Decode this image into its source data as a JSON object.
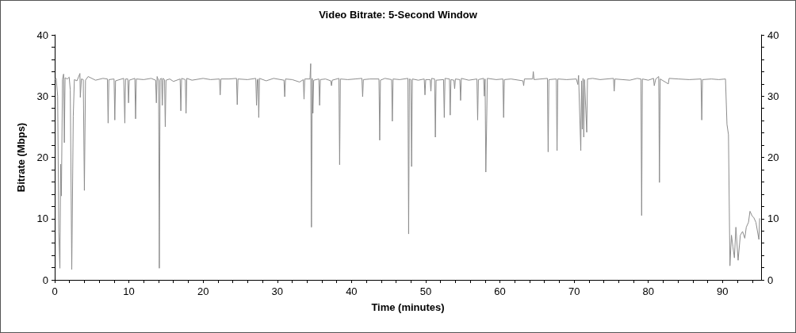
{
  "chart_data": {
    "type": "line",
    "title": "Video Bitrate: 5-Second Window",
    "xlabel": "Time (minutes)",
    "ylabel": "Bitrate (Mbps)",
    "xlim": [
      0,
      95.2
    ],
    "ylim": [
      0,
      40
    ],
    "y2lim": [
      0,
      40
    ],
    "xticks": [
      0,
      {
        "value": 2,
        "label": null
      },
      {
        "value": 4,
        "label": null
      },
      {
        "value": 6,
        "label": null
      },
      {
        "value": 8,
        "label": null
      },
      10,
      {
        "value": 12,
        "label": null
      },
      {
        "value": 14,
        "label": null
      },
      {
        "value": 16,
        "label": null
      },
      {
        "value": 18,
        "label": null
      },
      20,
      {
        "value": 22,
        "label": null
      },
      {
        "value": 24,
        "label": null
      },
      {
        "value": 26,
        "label": null
      },
      {
        "value": 28,
        "label": null
      },
      30,
      {
        "value": 32,
        "label": null
      },
      {
        "value": 34,
        "label": null
      },
      {
        "value": 36,
        "label": null
      },
      {
        "value": 38,
        "label": null
      },
      40,
      {
        "value": 42,
        "label": null
      },
      {
        "value": 44,
        "label": null
      },
      {
        "value": 46,
        "label": null
      },
      {
        "value": 48,
        "label": null
      },
      50,
      {
        "value": 52,
        "label": null
      },
      {
        "value": 54,
        "label": null
      },
      {
        "value": 56,
        "label": null
      },
      {
        "value": 58,
        "label": null
      },
      60,
      {
        "value": 62,
        "label": null
      },
      {
        "value": 64,
        "label": null
      },
      {
        "value": 66,
        "label": null
      },
      {
        "value": 68,
        "label": null
      },
      70,
      {
        "value": 72,
        "label": null
      },
      {
        "value": 74,
        "label": null
      },
      {
        "value": 76,
        "label": null
      },
      {
        "value": 78,
        "label": null
      },
      80,
      {
        "value": 82,
        "label": null
      },
      {
        "value": 84,
        "label": null
      },
      {
        "value": 86,
        "label": null
      },
      {
        "value": 88,
        "label": null
      },
      90,
      {
        "value": 92,
        "label": null
      },
      {
        "value": 94,
        "label": null
      }
    ],
    "yticks": [
      0,
      {
        "value": 2,
        "label": null
      },
      {
        "value": 4,
        "label": null
      },
      {
        "value": 6,
        "label": null
      },
      {
        "value": 8,
        "label": null
      },
      10,
      {
        "value": 12,
        "label": null
      },
      {
        "value": 14,
        "label": null
      },
      {
        "value": 16,
        "label": null
      },
      {
        "value": 18,
        "label": null
      },
      20,
      {
        "value": 22,
        "label": null
      },
      {
        "value": 24,
        "label": null
      },
      {
        "value": 26,
        "label": null
      },
      {
        "value": 28,
        "label": null
      },
      30,
      {
        "value": 32,
        "label": null
      },
      {
        "value": 34,
        "label": null
      },
      {
        "value": 36,
        "label": null
      },
      {
        "value": 38,
        "label": null
      },
      40
    ],
    "y2ticks": [
      0,
      {
        "value": 2,
        "label": null
      },
      {
        "value": 4,
        "label": null
      },
      {
        "value": 6,
        "label": null
      },
      {
        "value": 8,
        "label": null
      },
      10,
      {
        "value": 12,
        "label": null
      },
      {
        "value": 14,
        "label": null
      },
      {
        "value": 16,
        "label": null
      },
      {
        "value": 18,
        "label": null
      },
      20,
      {
        "value": 22,
        "label": null
      },
      {
        "value": 24,
        "label": null
      },
      {
        "value": 26,
        "label": null
      },
      {
        "value": 28,
        "label": null
      },
      30,
      {
        "value": 32,
        "label": null
      },
      {
        "value": 34,
        "label": null
      },
      {
        "value": 36,
        "label": null
      },
      {
        "value": 38,
        "label": null
      },
      40
    ],
    "marker": "none",
    "line_style": "solid",
    "series": [
      {
        "color": "#8c8c8c",
        "x": [
          0,
          0.2,
          0.4,
          0.55,
          0.7,
          0.8,
          0.9,
          1.05,
          1.2,
          1.3,
          1.4,
          1.7,
          1.95,
          2.1,
          2.3,
          2.5,
          2.65,
          3.0,
          3.4,
          3.45,
          3.6,
          3.85,
          4.0,
          4.15,
          4.5,
          5.5,
          6.5,
          7.1,
          7.2,
          7.3,
          8.0,
          8.1,
          8.2,
          9.3,
          9.45,
          9.55,
          9.85,
          9.95,
          10.05,
          10.8,
          10.9,
          11.0,
          12.0,
          13.0,
          13.6,
          13.7,
          13.8,
          14.0,
          14.1,
          14.2,
          14.4,
          14.5,
          14.6,
          14.8,
          14.9,
          15.0,
          15.5,
          16.0,
          16.9,
          17.0,
          17.1,
          17.6,
          17.7,
          17.8,
          18.5,
          20.0,
          21.0,
          22.2,
          22.3,
          22.4,
          23.5,
          24.5,
          24.6,
          24.7,
          26.0,
          27.1,
          27.2,
          27.3,
          27.4,
          27.5,
          27.6,
          28.5,
          29.5,
          30.9,
          31.0,
          31.1,
          32.0,
          33.0,
          33.5,
          33.6,
          33.7,
          34.4,
          34.5,
          34.6,
          34.7,
          34.8,
          34.9,
          35.6,
          35.7,
          35.8,
          36.5,
          37.2,
          37.3,
          37.4,
          38.3,
          38.4,
          38.5,
          39.5,
          40.5,
          41.4,
          41.5,
          41.6,
          42.5,
          43.7,
          43.8,
          43.9,
          44.5,
          45.4,
          45.5,
          45.6,
          46.5,
          47.6,
          47.7,
          47.8,
          48.0,
          48.1,
          48.2,
          49.0,
          49.8,
          49.9,
          50.0,
          50.6,
          50.7,
          50.8,
          51.2,
          51.3,
          51.4,
          52.4,
          52.5,
          52.6,
          53.2,
          53.3,
          53.4,
          53.8,
          53.9,
          54.0,
          54.6,
          54.7,
          54.8,
          55.8,
          56.9,
          57.0,
          57.1,
          57.8,
          57.9,
          58.0,
          58.1,
          58.2,
          58.3,
          59.5,
          60.4,
          60.5,
          60.6,
          61.5,
          63.1,
          63.2,
          63.3,
          64.4,
          64.5,
          64.6,
          65.5,
          66.4,
          66.5,
          66.6,
          67.6,
          67.7,
          67.8,
          69.0,
          70.3,
          70.5,
          70.6,
          70.9,
          71.0,
          71.1,
          71.2,
          71.3,
          71.4,
          71.7,
          71.8,
          72.5,
          73.5,
          75.3,
          75.4,
          75.5,
          76.5,
          77.5,
          78.5,
          79.0,
          79.1,
          79.2,
          80.0,
          80.7,
          80.8,
          81.0,
          81.4,
          81.5,
          81.6,
          82.7,
          82.8,
          84.0,
          85.5,
          87.1,
          87.2,
          87.3,
          88.5,
          89.5,
          90.4,
          90.6,
          90.8,
          91.0,
          91.2,
          91.4,
          91.6,
          91.8,
          92.1,
          92.4,
          92.7,
          93.0,
          93.2,
          93.5,
          93.7,
          94.0,
          94.2,
          94.5,
          94.9,
          95.0
        ],
        "values": [
          32.7,
          32.9,
          30,
          7.8,
          1.9,
          18.9,
          13.7,
          32.7,
          33.6,
          22.4,
          33,
          32.8,
          33.1,
          31,
          1.7,
          26.7,
          32.7,
          32.5,
          33.7,
          29.8,
          32.8,
          32.7,
          14.6,
          32.6,
          33.2,
          32.6,
          32.9,
          32.8,
          25.6,
          32.7,
          32.8,
          26.1,
          32.5,
          32.9,
          25.6,
          32.8,
          32.8,
          28.9,
          32.6,
          32.9,
          26.3,
          32.8,
          32.7,
          32.9,
          32.6,
          28.9,
          33.2,
          32.5,
          1.9,
          32.8,
          32.9,
          28.5,
          32.9,
          32.7,
          25.0,
          32.6,
          32.8,
          32.4,
          32.8,
          27.6,
          32.9,
          32.7,
          27.2,
          32.9,
          32.6,
          32.9,
          32.7,
          32.8,
          30.2,
          32.8,
          32.8,
          32.9,
          28.6,
          32.8,
          32.7,
          32.9,
          28.5,
          32.6,
          32.8,
          26.5,
          32.9,
          32.5,
          32.9,
          32.6,
          29.9,
          32.8,
          32.7,
          32.3,
          32.7,
          29.5,
          32.8,
          32.8,
          35.3,
          8.6,
          32.9,
          27.2,
          32.6,
          32.8,
          28.5,
          32.7,
          32.8,
          32.5,
          31.7,
          32.6,
          32.9,
          18.8,
          32.8,
          32.7,
          32.8,
          32.9,
          29.9,
          32.7,
          32.8,
          32.8,
          22.8,
          32.6,
          32.9,
          32.7,
          25.9,
          32.8,
          32.7,
          32.9,
          7.5,
          32.8,
          32.7,
          18.5,
          32.8,
          32.6,
          32.8,
          30.2,
          32.7,
          32.7,
          30.8,
          32.9,
          32.8,
          23.3,
          32.6,
          32.7,
          26.5,
          32.9,
          32.8,
          26.9,
          32.7,
          32.6,
          31.2,
          32.8,
          32.7,
          29.3,
          32.9,
          32.6,
          32.8,
          26.1,
          32.7,
          32.9,
          30.0,
          32.8,
          17.6,
          24.6,
          32.9,
          32.7,
          32.8,
          26.5,
          32.7,
          32.8,
          32.5,
          31.7,
          32.8,
          32.8,
          34.0,
          32.7,
          32.8,
          32.9,
          20.9,
          32.7,
          32.8,
          21.1,
          32.8,
          32.7,
          32.8,
          31.9,
          33.4,
          21.1,
          32.5,
          24.6,
          32.9,
          23.3,
          32.7,
          24.1,
          32.8,
          32.9,
          32.7,
          32.9,
          30.8,
          32.8,
          32.7,
          32.6,
          32.9,
          32.8,
          10.5,
          32.8,
          32.6,
          32.9,
          31.7,
          32.8,
          33.2,
          15.9,
          32.8,
          32.0,
          32.9,
          32.8,
          32.7,
          32.8,
          26.1,
          32.7,
          32.8,
          32.7,
          32.8,
          25.4,
          23.7,
          2.3,
          7.3,
          5.4,
          3.6,
          8.6,
          3.2,
          7.3,
          7.9,
          6.8,
          8.6,
          9.4,
          11.2,
          10.4,
          10.2,
          9.4,
          6.6,
          10.0
        ]
      }
    ]
  }
}
